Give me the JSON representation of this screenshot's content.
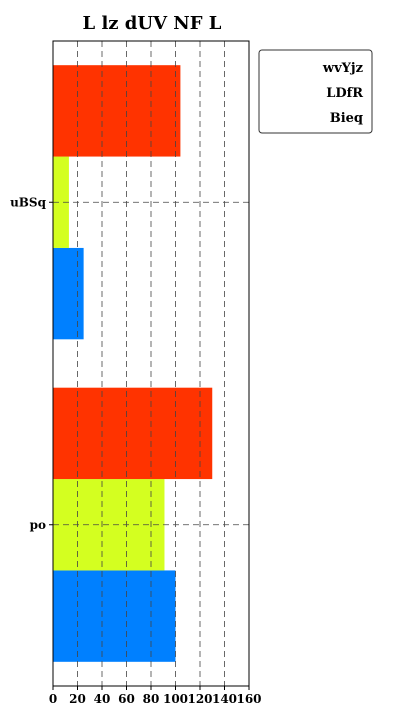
{
  "chart_data": {
    "type": "bar",
    "orientation": "horizontal",
    "title": "L lz dUV  NF L",
    "xlabel": "",
    "ylabel": "",
    "xlim": [
      0,
      160
    ],
    "xticks": [
      0,
      20,
      40,
      60,
      80,
      100,
      120,
      140,
      160
    ],
    "grid": true,
    "legend_position": "top-right",
    "categories": [
      "uBSq",
      "po"
    ],
    "series": [
      {
        "name": "wvYjz",
        "color": "#0080ff",
        "values": [
          25,
          100
        ]
      },
      {
        "name": "LDfR",
        "color": "#d4ff20",
        "values": [
          13,
          91
        ]
      },
      {
        "name": "Bieq",
        "color": "#ff3300",
        "values": [
          104,
          130
        ]
      }
    ]
  }
}
